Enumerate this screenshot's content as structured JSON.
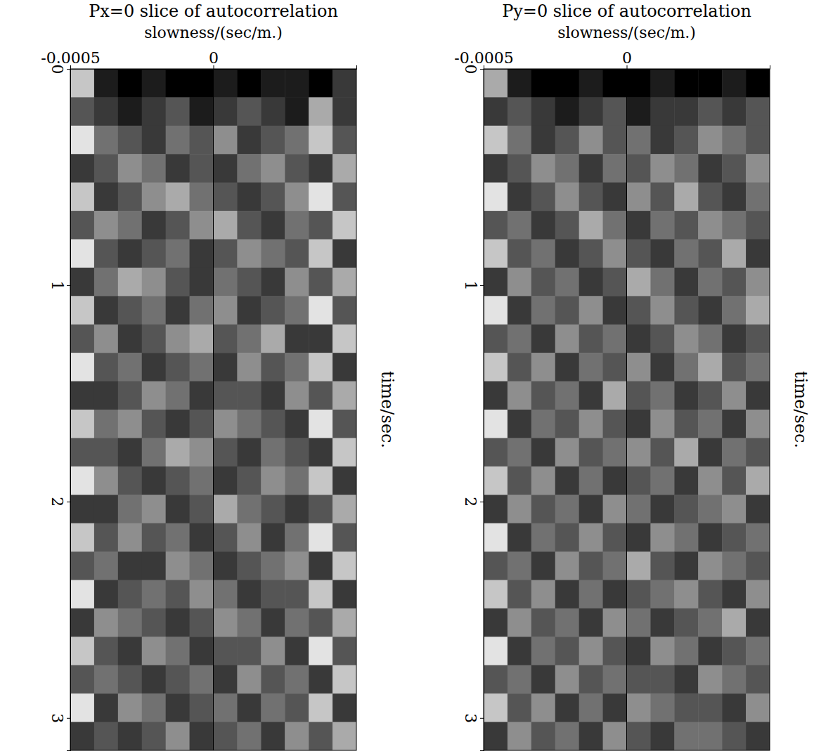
{
  "chart_data": [
    {
      "type": "heatmap",
      "title": "Px=0 slice of autocorrelation",
      "xlabel": "slowness/(sec/m.)",
      "ylabel": "time/sec.",
      "xlim": [
        -0.0005,
        0.0005
      ],
      "xticks": [
        -0.0005,
        0
      ],
      "ylim": [
        0,
        3.15
      ],
      "yticks": [
        0,
        1,
        2,
        3
      ],
      "grid": true,
      "color_range": [
        0,
        9
      ],
      "cells": [
        [
          7,
          1,
          0,
          1,
          0,
          0,
          1,
          0,
          1,
          1,
          0,
          2
        ],
        [
          3,
          2,
          1,
          2,
          3,
          1,
          2,
          3,
          2,
          1,
          6,
          2
        ],
        [
          8,
          4,
          3,
          2,
          4,
          3,
          5,
          2,
          3,
          4,
          7,
          3
        ],
        [
          2,
          3,
          5,
          4,
          2,
          3,
          2,
          4,
          5,
          3,
          2,
          6
        ],
        [
          7,
          2,
          3,
          5,
          6,
          4,
          3,
          2,
          3,
          5,
          8,
          3
        ],
        [
          3,
          5,
          4,
          2,
          3,
          5,
          6,
          3,
          2,
          4,
          3,
          7
        ],
        [
          8,
          3,
          2,
          3,
          4,
          2,
          3,
          5,
          4,
          3,
          7,
          2
        ],
        [
          2,
          4,
          6,
          5,
          3,
          2,
          4,
          3,
          2,
          5,
          3,
          6
        ],
        [
          7,
          2,
          3,
          4,
          2,
          4,
          5,
          2,
          3,
          4,
          8,
          3
        ],
        [
          3,
          5,
          2,
          3,
          5,
          6,
          3,
          4,
          6,
          2,
          2,
          7
        ],
        [
          8,
          3,
          4,
          2,
          3,
          4,
          2,
          5,
          3,
          4,
          7,
          2
        ],
        [
          2,
          2,
          3,
          5,
          4,
          2,
          3,
          3,
          2,
          5,
          3,
          6
        ],
        [
          7,
          4,
          5,
          3,
          2,
          3,
          5,
          4,
          3,
          2,
          8,
          3
        ],
        [
          3,
          3,
          2,
          4,
          6,
          5,
          3,
          2,
          4,
          3,
          2,
          7
        ],
        [
          8,
          5,
          3,
          2,
          3,
          4,
          2,
          3,
          5,
          4,
          7,
          2
        ],
        [
          2,
          2,
          4,
          5,
          2,
          3,
          6,
          4,
          3,
          2,
          3,
          6
        ],
        [
          7,
          3,
          5,
          3,
          4,
          2,
          3,
          5,
          2,
          4,
          8,
          3
        ],
        [
          3,
          4,
          2,
          2,
          5,
          4,
          2,
          3,
          4,
          5,
          2,
          7
        ],
        [
          8,
          2,
          3,
          4,
          3,
          5,
          4,
          2,
          3,
          3,
          7,
          2
        ],
        [
          2,
          5,
          4,
          3,
          2,
          3,
          5,
          4,
          2,
          4,
          3,
          6
        ],
        [
          7,
          3,
          2,
          5,
          4,
          2,
          3,
          3,
          5,
          2,
          8,
          3
        ],
        [
          3,
          4,
          3,
          2,
          3,
          4,
          2,
          5,
          3,
          4,
          2,
          7
        ],
        [
          8,
          2,
          5,
          4,
          2,
          3,
          4,
          2,
          4,
          3,
          7,
          2
        ],
        [
          2,
          3,
          2,
          3,
          5,
          2,
          3,
          4,
          2,
          5,
          3,
          6
        ]
      ]
    },
    {
      "type": "heatmap",
      "title": "Py=0 slice of autocorrelation",
      "xlabel": "slowness/(sec/m.)",
      "ylabel": "time/sec.",
      "xlim": [
        -0.0005,
        0.0005
      ],
      "xticks": [
        -0.0005,
        0
      ],
      "ylim": [
        0,
        3.15
      ],
      "yticks": [
        0,
        1,
        2,
        3
      ],
      "grid": true,
      "color_range": [
        0,
        9
      ],
      "cells": [
        [
          6,
          1,
          0,
          0,
          1,
          0,
          0,
          1,
          0,
          0,
          1,
          0
        ],
        [
          2,
          3,
          2,
          1,
          2,
          3,
          1,
          2,
          2,
          3,
          2,
          3
        ],
        [
          7,
          4,
          2,
          3,
          5,
          3,
          4,
          2,
          3,
          5,
          4,
          3
        ],
        [
          2,
          3,
          5,
          4,
          2,
          4,
          3,
          5,
          4,
          2,
          3,
          5
        ],
        [
          8,
          2,
          3,
          5,
          3,
          2,
          5,
          3,
          6,
          3,
          2,
          4
        ],
        [
          3,
          4,
          2,
          3,
          6,
          4,
          2,
          4,
          3,
          5,
          4,
          3
        ],
        [
          7,
          3,
          4,
          2,
          3,
          5,
          3,
          2,
          4,
          3,
          6,
          2
        ],
        [
          2,
          5,
          3,
          4,
          2,
          3,
          6,
          4,
          2,
          4,
          3,
          5
        ],
        [
          8,
          2,
          4,
          3,
          5,
          2,
          3,
          5,
          3,
          2,
          4,
          6
        ],
        [
          3,
          4,
          2,
          5,
          3,
          4,
          2,
          3,
          5,
          4,
          2,
          3
        ],
        [
          7,
          3,
          5,
          2,
          4,
          3,
          5,
          2,
          4,
          6,
          3,
          4
        ],
        [
          2,
          5,
          3,
          4,
          2,
          6,
          3,
          4,
          2,
          3,
          5,
          2
        ],
        [
          8,
          2,
          4,
          3,
          5,
          3,
          2,
          5,
          3,
          4,
          2,
          5
        ],
        [
          3,
          4,
          2,
          5,
          3,
          4,
          5,
          3,
          6,
          2,
          4,
          3
        ],
        [
          7,
          3,
          5,
          2,
          4,
          2,
          3,
          4,
          2,
          5,
          3,
          6
        ],
        [
          2,
          5,
          3,
          4,
          2,
          5,
          4,
          2,
          3,
          4,
          5,
          2
        ],
        [
          8,
          2,
          4,
          3,
          5,
          3,
          2,
          5,
          4,
          2,
          3,
          4
        ],
        [
          3,
          4,
          2,
          5,
          3,
          4,
          6,
          3,
          2,
          5,
          4,
          3
        ],
        [
          7,
          3,
          5,
          2,
          4,
          2,
          3,
          4,
          5,
          3,
          2,
          5
        ],
        [
          2,
          5,
          3,
          4,
          2,
          5,
          4,
          2,
          3,
          4,
          6,
          2
        ],
        [
          8,
          2,
          4,
          3,
          5,
          3,
          2,
          5,
          4,
          2,
          3,
          4
        ],
        [
          3,
          4,
          2,
          5,
          3,
          4,
          3,
          3,
          2,
          5,
          4,
          3
        ],
        [
          7,
          3,
          5,
          2,
          4,
          2,
          5,
          4,
          3,
          3,
          2,
          5
        ],
        [
          2,
          5,
          3,
          4,
          2,
          5,
          3,
          2,
          4,
          4,
          3,
          2
        ]
      ]
    }
  ]
}
